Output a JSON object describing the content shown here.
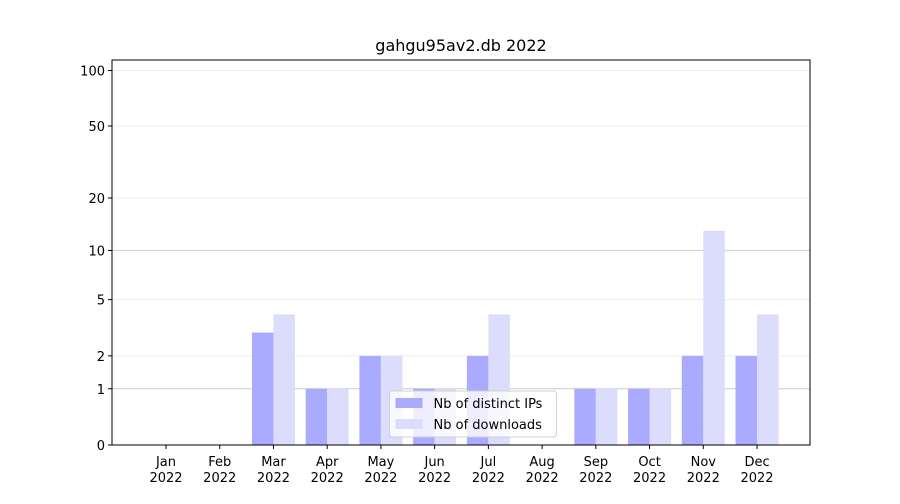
{
  "chart_data": {
    "type": "bar",
    "title": "gahgu95av2.db 2022",
    "categories": [
      "Jan\n2022",
      "Feb\n2022",
      "Mar\n2022",
      "Apr\n2022",
      "May\n2022",
      "Jun\n2022",
      "Jul\n2022",
      "Aug\n2022",
      "Sep\n2022",
      "Oct\n2022",
      "Nov\n2022",
      "Dec\n2022"
    ],
    "series": [
      {
        "name": "Nb of distinct IPs",
        "color": "#aaaaff",
        "values": [
          0,
          0,
          3,
          1,
          2,
          1,
          2,
          0,
          1,
          1,
          2,
          2
        ]
      },
      {
        "name": "Nb of downloads",
        "color": "#dcdcfc",
        "values": [
          0,
          0,
          4,
          1,
          2,
          1,
          4,
          0,
          1,
          1,
          13,
          4
        ]
      }
    ],
    "yscale": "log1p",
    "ylim": [
      0,
      114
    ],
    "yticks": [
      0,
      1,
      2,
      5,
      10,
      20,
      50,
      100
    ],
    "grid": true,
    "legend": "lower center"
  }
}
